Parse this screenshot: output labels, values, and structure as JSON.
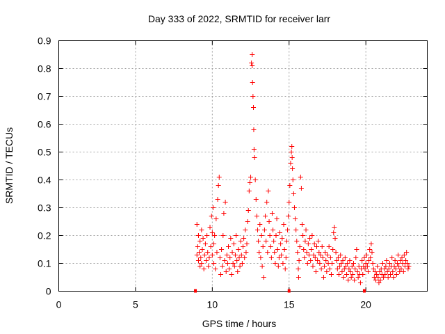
{
  "chart_data": {
    "type": "scatter",
    "title": "Day 333 of 2022, SRMTID for receiver larr",
    "xlabel": "GPS time / hours",
    "ylabel": "SRMTID / TECUs",
    "xlim": [
      0,
      24
    ],
    "ylim": [
      0,
      0.9
    ],
    "x_ticks": [
      0,
      5,
      10,
      15,
      20
    ],
    "y_ticks": [
      0,
      0.1,
      0.2,
      0.3,
      0.4,
      0.5,
      0.6,
      0.7,
      0.8,
      0.9
    ],
    "x_tick_labels": [
      "0",
      "5",
      "10",
      "15",
      "20"
    ],
    "y_tick_labels": [
      "0",
      "0.1",
      "0.2",
      "0.3",
      "0.4",
      "0.5",
      "0.6",
      "0.7",
      "0.8",
      "0.9"
    ],
    "grid": true,
    "marker": "+",
    "color": "#ff0000",
    "data_range_hours": [
      9.0,
      22.8
    ],
    "zero_markers_x": [
      8.9,
      15.0,
      19.9
    ],
    "series": [
      {
        "name": "SRMTID",
        "points": [
          [
            9.0,
            0.24
          ],
          [
            9.0,
            0.13
          ],
          [
            9.05,
            0.16
          ],
          [
            9.1,
            0.11
          ],
          [
            9.1,
            0.2
          ],
          [
            9.15,
            0.14
          ],
          [
            9.2,
            0.09
          ],
          [
            9.2,
            0.18
          ],
          [
            9.25,
            0.12
          ],
          [
            9.3,
            0.22
          ],
          [
            9.3,
            0.1
          ],
          [
            9.35,
            0.15
          ],
          [
            9.4,
            0.19
          ],
          [
            9.45,
            0.08
          ],
          [
            9.5,
            0.13
          ],
          [
            9.55,
            0.17
          ],
          [
            9.6,
            0.11
          ],
          [
            9.65,
            0.2
          ],
          [
            9.7,
            0.14
          ],
          [
            9.75,
            0.09
          ],
          [
            9.8,
            0.12
          ],
          [
            9.85,
            0.23
          ],
          [
            9.9,
            0.16
          ],
          [
            9.95,
            0.27
          ],
          [
            10.0,
            0.21
          ],
          [
            10.0,
            0.13
          ],
          [
            10.05,
            0.3
          ],
          [
            10.1,
            0.17
          ],
          [
            10.1,
            0.1
          ],
          [
            10.15,
            0.2
          ],
          [
            10.2,
            0.08
          ],
          [
            10.25,
            0.26
          ],
          [
            10.3,
            0.14
          ],
          [
            10.35,
            0.33
          ],
          [
            10.4,
            0.38
          ],
          [
            10.45,
            0.41
          ],
          [
            10.5,
            0.12
          ],
          [
            10.55,
            0.06
          ],
          [
            10.6,
            0.15
          ],
          [
            10.65,
            0.09
          ],
          [
            10.7,
            0.2
          ],
          [
            10.75,
            0.28
          ],
          [
            10.8,
            0.11
          ],
          [
            10.85,
            0.32
          ],
          [
            10.9,
            0.07
          ],
          [
            10.95,
            0.13
          ],
          [
            11.0,
            0.1
          ],
          [
            11.05,
            0.16
          ],
          [
            11.1,
            0.08
          ],
          [
            11.15,
            0.12
          ],
          [
            11.2,
            0.19
          ],
          [
            11.25,
            0.06
          ],
          [
            11.3,
            0.14
          ],
          [
            11.35,
            0.1
          ],
          [
            11.4,
            0.17
          ],
          [
            11.45,
            0.09
          ],
          [
            11.5,
            0.13
          ],
          [
            11.55,
            0.2
          ],
          [
            11.6,
            0.11
          ],
          [
            11.65,
            0.07
          ],
          [
            11.7,
            0.15
          ],
          [
            11.75,
            0.12
          ],
          [
            11.8,
            0.09
          ],
          [
            11.85,
            0.18
          ],
          [
            11.9,
            0.13
          ],
          [
            11.95,
            0.1
          ],
          [
            12.0,
            0.16
          ],
          [
            12.05,
            0.19
          ],
          [
            12.1,
            0.12
          ],
          [
            12.15,
            0.22
          ],
          [
            12.2,
            0.14
          ],
          [
            12.25,
            0.17
          ],
          [
            12.3,
            0.25
          ],
          [
            12.35,
            0.29
          ],
          [
            12.4,
            0.36
          ],
          [
            12.45,
            0.39
          ],
          [
            12.5,
            0.41
          ],
          [
            12.55,
            0.82
          ],
          [
            12.6,
            0.85
          ],
          [
            12.6,
            0.81
          ],
          [
            12.62,
            0.75
          ],
          [
            12.65,
            0.7
          ],
          [
            12.68,
            0.66
          ],
          [
            12.7,
            0.58
          ],
          [
            12.72,
            0.51
          ],
          [
            12.75,
            0.48
          ],
          [
            12.8,
            0.4
          ],
          [
            12.85,
            0.33
          ],
          [
            12.9,
            0.27
          ],
          [
            12.95,
            0.22
          ],
          [
            13.0,
            0.18
          ],
          [
            13.05,
            0.14
          ],
          [
            13.1,
            0.24
          ],
          [
            13.15,
            0.12
          ],
          [
            13.2,
            0.2
          ],
          [
            13.25,
            0.09
          ],
          [
            13.3,
            0.16
          ],
          [
            13.35,
            0.05
          ],
          [
            13.4,
            0.22
          ],
          [
            13.45,
            0.27
          ],
          [
            13.5,
            0.18
          ],
          [
            13.55,
            0.32
          ],
          [
            13.6,
            0.14
          ],
          [
            13.65,
            0.36
          ],
          [
            13.7,
            0.25
          ],
          [
            13.75,
            0.2
          ],
          [
            13.8,
            0.16
          ],
          [
            13.85,
            0.12
          ],
          [
            13.9,
            0.28
          ],
          [
            13.95,
            0.22
          ],
          [
            14.0,
            0.18
          ],
          [
            14.05,
            0.14
          ],
          [
            14.1,
            0.1
          ],
          [
            14.15,
            0.2
          ],
          [
            14.2,
            0.26
          ],
          [
            14.25,
            0.15
          ],
          [
            14.3,
            0.09
          ],
          [
            14.35,
            0.12
          ],
          [
            14.4,
            0.21
          ],
          [
            14.45,
            0.17
          ],
          [
            14.5,
            0.13
          ],
          [
            14.55,
            0.19
          ],
          [
            14.6,
            0.1
          ],
          [
            14.65,
            0.24
          ],
          [
            14.7,
            0.15
          ],
          [
            14.75,
            0.08
          ],
          [
            14.8,
            0.12
          ],
          [
            14.85,
            0.18
          ],
          [
            14.9,
            0.22
          ],
          [
            14.95,
            0.27
          ],
          [
            15.0,
            0.32
          ],
          [
            15.05,
            0.38
          ],
          [
            15.1,
            0.46
          ],
          [
            15.15,
            0.5
          ],
          [
            15.18,
            0.52
          ],
          [
            15.2,
            0.48
          ],
          [
            15.22,
            0.44
          ],
          [
            15.25,
            0.4
          ],
          [
            15.3,
            0.35
          ],
          [
            15.35,
            0.3
          ],
          [
            15.4,
            0.26
          ],
          [
            15.45,
            0.22
          ],
          [
            15.5,
            0.18
          ],
          [
            15.55,
            0.14
          ],
          [
            15.6,
            0.08
          ],
          [
            15.62,
            0.05
          ],
          [
            15.65,
            0.11
          ],
          [
            15.7,
            0.16
          ],
          [
            15.75,
            0.41
          ],
          [
            15.8,
            0.37
          ],
          [
            15.85,
            0.24
          ],
          [
            15.9,
            0.2
          ],
          [
            15.95,
            0.15
          ],
          [
            16.0,
            0.12
          ],
          [
            16.05,
            0.18
          ],
          [
            16.1,
            0.22
          ],
          [
            16.15,
            0.14
          ],
          [
            16.2,
            0.1
          ],
          [
            16.25,
            0.17
          ],
          [
            16.3,
            0.13
          ],
          [
            16.35,
            0.19
          ],
          [
            16.4,
            0.11
          ],
          [
            16.45,
            0.15
          ],
          [
            16.5,
            0.2
          ],
          [
            16.55,
            0.09
          ],
          [
            16.6,
            0.13
          ],
          [
            16.65,
            0.17
          ],
          [
            16.7,
            0.12
          ],
          [
            16.75,
            0.07
          ],
          [
            16.8,
            0.16
          ],
          [
            16.85,
            0.11
          ],
          [
            16.9,
            0.18
          ],
          [
            16.95,
            0.14
          ],
          [
            17.0,
            0.1
          ],
          [
            17.05,
            0.13
          ],
          [
            17.1,
            0.08
          ],
          [
            17.15,
            0.16
          ],
          [
            17.2,
            0.12
          ],
          [
            17.25,
            0.05
          ],
          [
            17.3,
            0.09
          ],
          [
            17.35,
            0.14
          ],
          [
            17.4,
            0.11
          ],
          [
            17.45,
            0.07
          ],
          [
            17.5,
            0.13
          ],
          [
            17.55,
            0.1
          ],
          [
            17.6,
            0.16
          ],
          [
            17.65,
            0.08
          ],
          [
            17.7,
            0.12
          ],
          [
            17.75,
            0.06
          ],
          [
            17.8,
            0.1
          ],
          [
            17.85,
            0.15
          ],
          [
            17.9,
            0.21
          ],
          [
            17.95,
            0.23
          ],
          [
            18.0,
            0.19
          ],
          [
            18.05,
            0.14
          ],
          [
            18.1,
            0.11
          ],
          [
            18.15,
            0.08
          ],
          [
            18.2,
            0.12
          ],
          [
            18.25,
            0.06
          ],
          [
            18.3,
            0.09
          ],
          [
            18.35,
            0.13
          ],
          [
            18.4,
            0.1
          ],
          [
            18.45,
            0.07
          ],
          [
            18.5,
            0.11
          ],
          [
            18.55,
            0.05
          ],
          [
            18.6,
            0.08
          ],
          [
            18.65,
            0.12
          ],
          [
            18.7,
            0.09
          ],
          [
            18.75,
            0.06
          ],
          [
            18.8,
            0.1
          ],
          [
            18.85,
            0.04
          ],
          [
            18.9,
            0.08
          ],
          [
            18.95,
            0.11
          ],
          [
            19.0,
            0.07
          ],
          [
            19.05,
            0.05
          ],
          [
            19.1,
            0.09
          ],
          [
            19.15,
            0.06
          ],
          [
            19.2,
            0.1
          ],
          [
            19.25,
            0.04
          ],
          [
            19.3,
            0.08
          ],
          [
            19.35,
            0.12
          ],
          [
            19.4,
            0.15
          ],
          [
            19.45,
            0.07
          ],
          [
            19.5,
            0.05
          ],
          [
            19.55,
            0.09
          ],
          [
            19.6,
            0.06
          ],
          [
            19.65,
            0.03
          ],
          [
            19.7,
            0.08
          ],
          [
            19.75,
            0.11
          ],
          [
            19.8,
            0.06
          ],
          [
            19.85,
            0.09
          ],
          [
            19.9,
            0.12
          ],
          [
            19.95,
            0.08
          ],
          [
            20.0,
            0.1
          ],
          [
            20.05,
            0.13
          ],
          [
            20.1,
            0.09
          ],
          [
            20.15,
            0.07
          ],
          [
            20.2,
            0.11
          ],
          [
            20.25,
            0.15
          ],
          [
            20.3,
            0.12
          ],
          [
            20.35,
            0.17
          ],
          [
            20.4,
            0.14
          ],
          [
            20.45,
            0.1
          ],
          [
            20.5,
            0.08
          ],
          [
            20.55,
            0.05
          ],
          [
            20.6,
            0.07
          ],
          [
            20.65,
            0.04
          ],
          [
            20.7,
            0.06
          ],
          [
            20.75,
            0.09
          ],
          [
            20.8,
            0.05
          ],
          [
            20.85,
            0.03
          ],
          [
            20.9,
            0.07
          ],
          [
            20.95,
            0.04
          ],
          [
            21.0,
            0.08
          ],
          [
            21.05,
            0.06
          ],
          [
            21.1,
            0.1
          ],
          [
            21.15,
            0.05
          ],
          [
            21.2,
            0.08
          ],
          [
            21.25,
            0.06
          ],
          [
            21.3,
            0.09
          ],
          [
            21.35,
            0.11
          ],
          [
            21.4,
            0.07
          ],
          [
            21.45,
            0.05
          ],
          [
            21.5,
            0.08
          ],
          [
            21.55,
            0.1
          ],
          [
            21.6,
            0.06
          ],
          [
            21.65,
            0.09
          ],
          [
            21.7,
            0.12
          ],
          [
            21.75,
            0.07
          ],
          [
            21.8,
            0.05
          ],
          [
            21.85,
            0.09
          ],
          [
            21.9,
            0.11
          ],
          [
            21.95,
            0.08
          ],
          [
            22.0,
            0.06
          ],
          [
            22.05,
            0.1
          ],
          [
            22.1,
            0.13
          ],
          [
            22.15,
            0.09
          ],
          [
            22.2,
            0.07
          ],
          [
            22.25,
            0.11
          ],
          [
            22.3,
            0.08
          ],
          [
            22.35,
            0.12
          ],
          [
            22.4,
            0.1
          ],
          [
            22.45,
            0.07
          ],
          [
            22.5,
            0.13
          ],
          [
            22.55,
            0.09
          ],
          [
            22.6,
            0.11
          ],
          [
            22.65,
            0.14
          ],
          [
            22.7,
            0.1
          ],
          [
            22.75,
            0.08
          ],
          [
            22.8,
            0.09
          ]
        ]
      }
    ]
  }
}
